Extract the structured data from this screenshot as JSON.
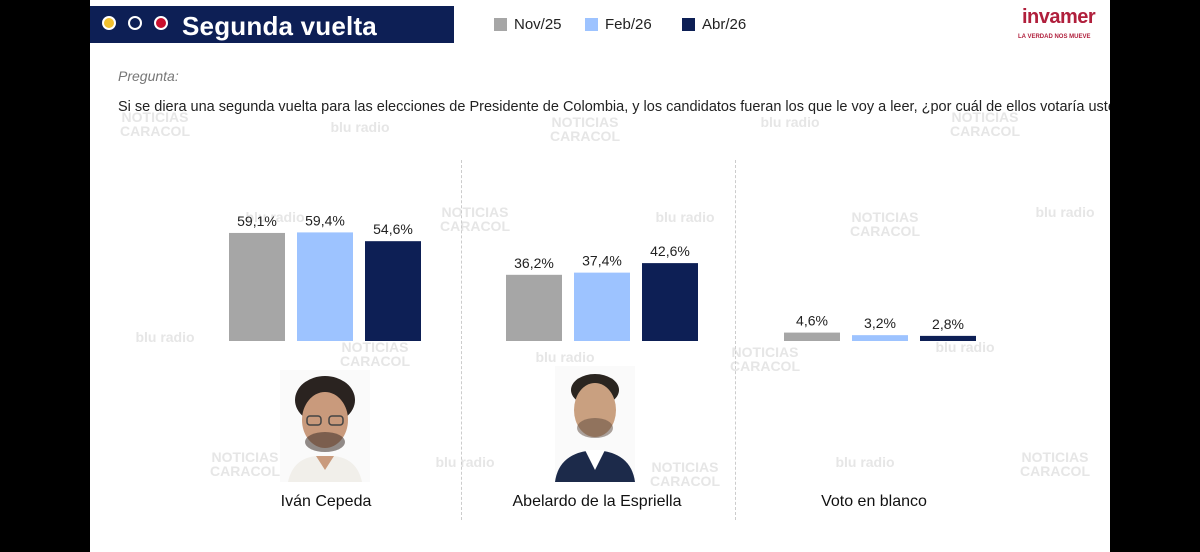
{
  "header": {
    "title": "Segunda vuelta",
    "dot_colors": [
      "#f2c12e",
      "#0d1f55",
      "#c8102e"
    ]
  },
  "legend": [
    {
      "label": "Nov/25",
      "color": "#a6a6a6"
    },
    {
      "label": "Feb/26",
      "color": "#9dc3ff"
    },
    {
      "label": "Abr/26",
      "color": "#0d1f55"
    }
  ],
  "logo": {
    "name": "invamer",
    "tagline": "LA VERDAD NOS MUEVE"
  },
  "question": {
    "label": "Pregunta:",
    "text": "Si se diera una segunda vuelta para las elecciones de Presidente de Colombia, y los candidatos fueran los que le voy a leer, ¿por cuál de ellos votaría usted?"
  },
  "watermarks": [
    "NOTICIAS CARACOL",
    "blu radio"
  ],
  "chart_data": {
    "type": "bar",
    "categories": [
      "Iván Cepeda",
      "Abelardo de la Espriella",
      "Voto en blanco"
    ],
    "series": [
      {
        "name": "Nov/25",
        "values": [
          59.1,
          36.2,
          4.6
        ],
        "labels": [
          "59,1%",
          "36,2%",
          "4,6%"
        ]
      },
      {
        "name": "Feb/26",
        "values": [
          59.4,
          37.4,
          3.2
        ],
        "labels": [
          "59,4%",
          "37,4%",
          "3,2%"
        ]
      },
      {
        "name": "Abr/26",
        "values": [
          54.6,
          42.6,
          2.8
        ],
        "labels": [
          "54,6%",
          "42,6%",
          "2,8%"
        ]
      }
    ],
    "ylim": [
      0,
      60
    ],
    "legend_position": "top",
    "grid": false
  }
}
